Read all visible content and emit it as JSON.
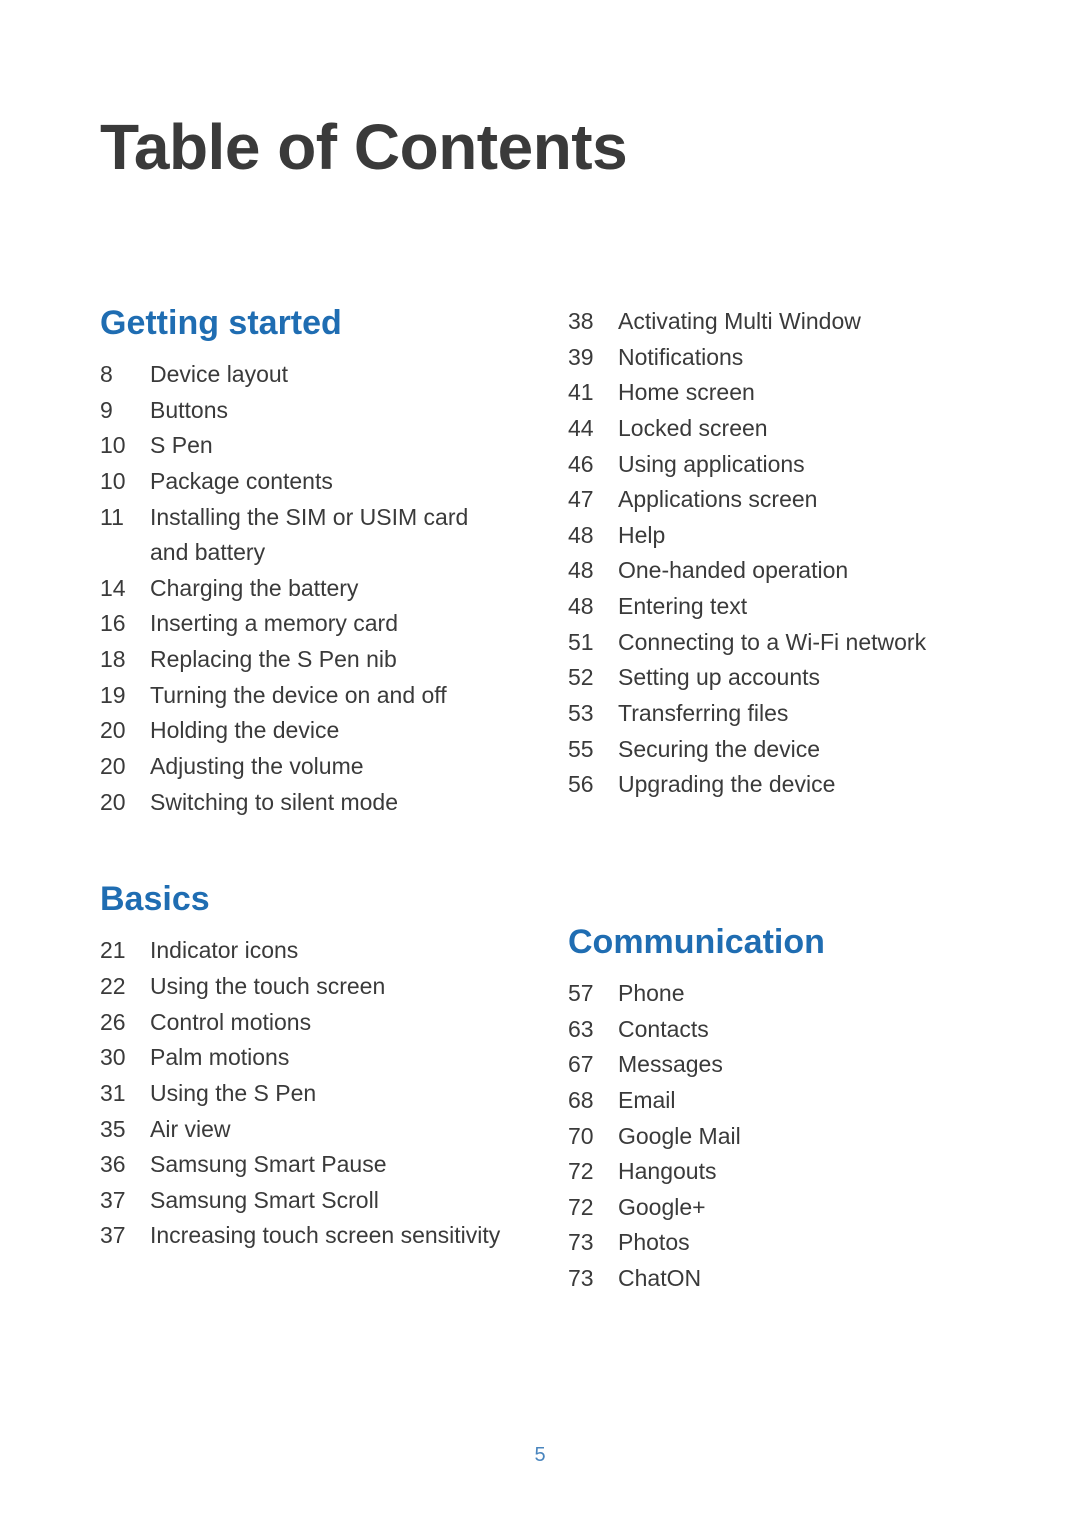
{
  "title": "Table of Contents",
  "page_number": "5",
  "colors": {
    "heading": "#1f6db2",
    "body_text": "#3a3a3a",
    "page_num": "#4985be",
    "background": "#ffffff"
  },
  "fonts": {
    "title_size_pt": 48,
    "section_size_pt": 26,
    "entry_size_pt": 17
  },
  "left_column": {
    "sections": [
      {
        "heading": "Getting started",
        "entries": [
          {
            "page": "8",
            "title": "Device layout"
          },
          {
            "page": "9",
            "title": "Buttons"
          },
          {
            "page": "10",
            "title": "S Pen"
          },
          {
            "page": "10",
            "title": "Package contents"
          },
          {
            "page": "11",
            "title": "Installing the SIM or USIM card and battery"
          },
          {
            "page": "14",
            "title": "Charging the battery"
          },
          {
            "page": "16",
            "title": "Inserting a memory card"
          },
          {
            "page": "18",
            "title": "Replacing the S Pen nib"
          },
          {
            "page": "19",
            "title": "Turning the device on and off"
          },
          {
            "page": "20",
            "title": "Holding the device"
          },
          {
            "page": "20",
            "title": "Adjusting the volume"
          },
          {
            "page": "20",
            "title": "Switching to silent mode"
          }
        ]
      },
      {
        "heading": "Basics",
        "entries": [
          {
            "page": "21",
            "title": "Indicator icons"
          },
          {
            "page": "22",
            "title": "Using the touch screen"
          },
          {
            "page": "26",
            "title": "Control motions"
          },
          {
            "page": "30",
            "title": "Palm motions"
          },
          {
            "page": "31",
            "title": "Using the S Pen"
          },
          {
            "page": "35",
            "title": "Air view"
          },
          {
            "page": "36",
            "title": "Samsung Smart Pause"
          },
          {
            "page": "37",
            "title": "Samsung Smart Scroll"
          },
          {
            "page": "37",
            "title": "Increasing touch screen sensitivity"
          }
        ]
      }
    ]
  },
  "right_column": {
    "sections": [
      {
        "heading": null,
        "entries": [
          {
            "page": "38",
            "title": "Activating Multi Window"
          },
          {
            "page": "39",
            "title": "Notifications"
          },
          {
            "page": "41",
            "title": "Home screen"
          },
          {
            "page": "44",
            "title": "Locked screen"
          },
          {
            "page": "46",
            "title": "Using applications"
          },
          {
            "page": "47",
            "title": "Applications screen"
          },
          {
            "page": "48",
            "title": "Help"
          },
          {
            "page": "48",
            "title": "One-handed operation"
          },
          {
            "page": "48",
            "title": "Entering text"
          },
          {
            "page": "51",
            "title": "Connecting to a Wi-Fi network"
          },
          {
            "page": "52",
            "title": "Setting up accounts"
          },
          {
            "page": "53",
            "title": "Transferring files"
          },
          {
            "page": "55",
            "title": "Securing the device"
          },
          {
            "page": "56",
            "title": "Upgrading the device"
          }
        ]
      },
      {
        "heading": "Communication",
        "entries": [
          {
            "page": "57",
            "title": "Phone"
          },
          {
            "page": "63",
            "title": "Contacts"
          },
          {
            "page": "67",
            "title": "Messages"
          },
          {
            "page": "68",
            "title": "Email"
          },
          {
            "page": "70",
            "title": "Google Mail"
          },
          {
            "page": "72",
            "title": "Hangouts"
          },
          {
            "page": "72",
            "title": "Google+"
          },
          {
            "page": "73",
            "title": "Photos"
          },
          {
            "page": "73",
            "title": "ChatON"
          }
        ]
      }
    ]
  }
}
